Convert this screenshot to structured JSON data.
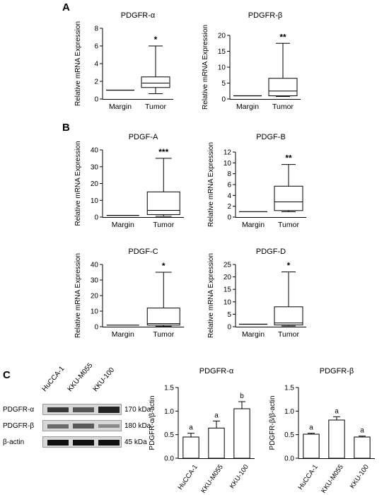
{
  "panels": {
    "a": "A",
    "b": "B",
    "c": "C"
  },
  "chart_data": [
    {
      "type": "box",
      "title": "PDGFR-α",
      "ylabel": "Relative mRNA Expression",
      "categories": [
        "Margin",
        "Tumor"
      ],
      "ylim": [
        0,
        8
      ],
      "yticks": [
        0,
        2,
        4,
        6,
        8
      ],
      "boxes": [
        {
          "name": "Margin",
          "min": 1.0,
          "q1": 1.0,
          "median": 1.0,
          "q3": 1.0,
          "max": 1.0
        },
        {
          "name": "Tumor",
          "min": 0.6,
          "q1": 1.3,
          "median": 1.8,
          "q3": 2.5,
          "max": 6.0
        }
      ],
      "annotations": [
        "",
        "*"
      ]
    },
    {
      "type": "box",
      "title": "PDGFR-β",
      "ylabel": "Relative mRNA Expression",
      "categories": [
        "Margin",
        "Tumor"
      ],
      "ylim": [
        0,
        20
      ],
      "yticks": [
        0,
        5,
        10,
        15,
        20
      ],
      "boxes": [
        {
          "name": "Margin",
          "min": 1.0,
          "q1": 1.0,
          "median": 1.0,
          "q3": 1.0,
          "max": 1.0
        },
        {
          "name": "Tumor",
          "min": 0.8,
          "q1": 1.0,
          "median": 2.5,
          "q3": 6.5,
          "max": 17.5
        }
      ],
      "annotations": [
        "",
        "**"
      ]
    },
    {
      "type": "box",
      "title": "PDGF-A",
      "ylabel": "Relative mRNA Expression",
      "categories": [
        "Margin",
        "Tumor"
      ],
      "ylim": [
        0,
        40
      ],
      "yticks": [
        0,
        10,
        20,
        30,
        40
      ],
      "boxes": [
        {
          "name": "Margin",
          "min": 1.0,
          "q1": 1.0,
          "median": 1.0,
          "q3": 1.0,
          "max": 1.0
        },
        {
          "name": "Tumor",
          "min": 0.5,
          "q1": 1.5,
          "median": 4.0,
          "q3": 15.0,
          "max": 35.0
        }
      ],
      "annotations": [
        "",
        "***"
      ]
    },
    {
      "type": "box",
      "title": "PDGF-B",
      "ylabel": "Relative mRNA Expression",
      "categories": [
        "Margin",
        "Tumor"
      ],
      "ylim": [
        0,
        12
      ],
      "yticks": [
        0,
        2,
        4,
        6,
        8,
        10,
        12
      ],
      "boxes": [
        {
          "name": "Margin",
          "min": 1.0,
          "q1": 1.0,
          "median": 1.0,
          "q3": 1.0,
          "max": 1.0
        },
        {
          "name": "Tumor",
          "min": 1.0,
          "q1": 1.2,
          "median": 2.8,
          "q3": 5.7,
          "max": 9.7
        }
      ],
      "annotations": [
        "",
        "**"
      ]
    },
    {
      "type": "box",
      "title": "PDGF-C",
      "ylabel": "Relative mRNA Expression",
      "categories": [
        "Margin",
        "Tumor"
      ],
      "ylim": [
        0,
        40
      ],
      "yticks": [
        0,
        10,
        20,
        30,
        40
      ],
      "boxes": [
        {
          "name": "Margin",
          "min": 1.0,
          "q1": 1.0,
          "median": 1.0,
          "q3": 1.0,
          "max": 1.0
        },
        {
          "name": "Tumor",
          "min": 0.3,
          "q1": 1.0,
          "median": 2.0,
          "q3": 12.0,
          "max": 35.0
        }
      ],
      "annotations": [
        "",
        "*"
      ]
    },
    {
      "type": "box",
      "title": "PDGF-D",
      "ylabel": "Relative mRNA Expression",
      "categories": [
        "Margin",
        "Tumor"
      ],
      "ylim": [
        0,
        25
      ],
      "yticks": [
        0,
        5,
        10,
        15,
        20,
        25
      ],
      "boxes": [
        {
          "name": "Margin",
          "min": 1.0,
          "q1": 1.0,
          "median": 1.0,
          "q3": 1.0,
          "max": 1.0
        },
        {
          "name": "Tumor",
          "min": 0.3,
          "q1": 0.7,
          "median": 1.5,
          "q3": 8.0,
          "max": 22.0
        }
      ],
      "annotations": [
        "",
        "*"
      ]
    },
    {
      "type": "bar",
      "title": "PDGFR-α",
      "ylabel": "PDGFR-α/β-actin",
      "categories": [
        "HuCCA-1",
        "KKU-M055",
        "KKU-100"
      ],
      "ylim": [
        0,
        1.5
      ],
      "yticks": [
        0.0,
        0.5,
        1.0,
        1.5
      ],
      "values": [
        0.45,
        0.64,
        1.05
      ],
      "errors": [
        0.08,
        0.15,
        0.15
      ],
      "annotations": [
        "a",
        "a",
        "b"
      ]
    },
    {
      "type": "bar",
      "title": "PDGFR-β",
      "ylabel": "PDGFR-β/β-actin",
      "categories": [
        "HuCCA-1",
        "KKU-M055",
        "KKU-100"
      ],
      "ylim": [
        0,
        1.5
      ],
      "yticks": [
        0.0,
        0.5,
        1.0,
        1.5
      ],
      "values": [
        0.51,
        0.81,
        0.45
      ],
      "errors": [
        0.02,
        0.07,
        0.02
      ],
      "annotations": [
        "a",
        "a",
        "a"
      ]
    }
  ],
  "blot": {
    "lanes": [
      "HuCCA-1",
      "KKU-M055",
      "KKU-100"
    ],
    "rows": [
      {
        "label": "PDGFR-α",
        "kda": "170 kDa"
      },
      {
        "label": "PDGFR-β",
        "kda": "180 kDa"
      },
      {
        "label": "β-actin",
        "kda": "45 kDa"
      }
    ]
  }
}
